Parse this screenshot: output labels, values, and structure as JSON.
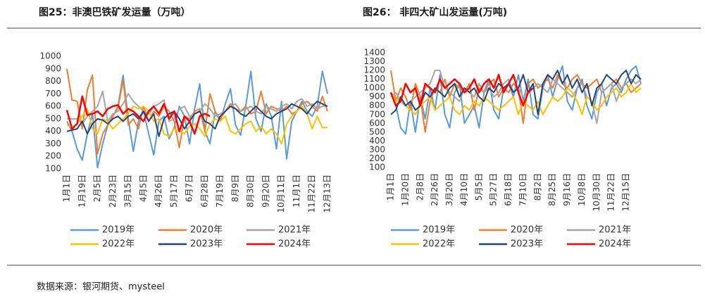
{
  "chart_data": [
    {
      "type": "line",
      "title": "图25：非澳巴铁矿发运量（万吨）",
      "categories": [
        "1月1日",
        null,
        null,
        "1月19日",
        null,
        null,
        "2月5日",
        null,
        null,
        "2月23日",
        null,
        null,
        "3月15日",
        null,
        null,
        "4月5日",
        null,
        null,
        "4月26日",
        null,
        null,
        "5月17日",
        null,
        null,
        "6月7日",
        null,
        null,
        "6月28日",
        null,
        null,
        "7月19日",
        null,
        null,
        "8月9日",
        null,
        null,
        "8月30日",
        null,
        null,
        "9月20日",
        null,
        null,
        "10月11日",
        null,
        null,
        "11月1日",
        null,
        null,
        "11月22日",
        null,
        null,
        "12月13日"
      ],
      "ylim": [
        100,
        1000
      ],
      "yticks": [
        100,
        200,
        300,
        400,
        500,
        600,
        700,
        800,
        900,
        1000
      ],
      "grid": false,
      "series": [
        {
          "name": "2019年",
          "color": "#5b9bd5",
          "values": [
            480,
            400,
            260,
            170,
            380,
            540,
            110,
            300,
            450,
            520,
            600,
            850,
            500,
            240,
            480,
            560,
            380,
            210,
            480,
            520,
            340,
            430,
            600,
            520,
            300,
            580,
            780,
            400,
            300,
            560,
            480,
            620,
            740,
            450,
            370,
            600,
            880,
            500,
            400,
            620,
            520,
            260,
            640,
            180,
            480,
            560,
            640,
            560,
            520,
            600,
            880,
            700
          ]
        },
        {
          "name": "2020年",
          "color": "#ed7d31",
          "values": [
            900,
            650,
            640,
            420,
            730,
            850,
            220,
            380,
            450,
            520,
            590,
            810,
            450,
            500,
            420,
            600,
            480,
            560,
            520,
            600,
            560,
            480,
            270,
            520,
            500,
            560,
            580,
            400,
            700,
            560,
            500,
            560,
            620,
            580,
            560,
            600,
            540,
            560,
            720,
            540,
            600,
            580,
            560,
            600,
            540,
            560,
            620,
            640,
            600,
            560,
            680,
            560
          ]
        },
        {
          "name": "2021年",
          "color": "#a5a5a5",
          "values": [
            500,
            500,
            500,
            460,
            520,
            560,
            600,
            720,
            480,
            540,
            560,
            620,
            700,
            640,
            600,
            560,
            540,
            600,
            620,
            650,
            480,
            500,
            580,
            600,
            520,
            540,
            560,
            620,
            580,
            520,
            540,
            560,
            600,
            620,
            560,
            580,
            600,
            560,
            540,
            600,
            580,
            560,
            600,
            620,
            580,
            640,
            660,
            600,
            620,
            580,
            600,
            600
          ]
        },
        {
          "name": "2022年",
          "color": "#ffc000",
          "values": [
            450,
            430,
            460,
            520,
            580,
            420,
            380,
            500,
            480,
            420,
            460,
            500,
            540,
            600,
            580,
            600,
            560,
            480,
            500,
            380,
            360,
            420,
            400,
            380,
            440,
            460,
            420,
            360,
            460,
            500,
            480,
            520,
            400,
            380,
            420,
            460,
            480,
            400,
            440,
            380,
            420,
            380,
            300,
            460,
            520,
            560,
            600,
            540,
            420,
            520,
            430,
            430
          ]
        },
        {
          "name": "2023年",
          "color": "#264478",
          "values": [
            400,
            410,
            420,
            480,
            380,
            460,
            500,
            490,
            460,
            500,
            520,
            480,
            520,
            540,
            500,
            560,
            480,
            540,
            360,
            500,
            540,
            560,
            500,
            420,
            480,
            540,
            560,
            480,
            460,
            420,
            520,
            560,
            600,
            580,
            540,
            520,
            560,
            600,
            560,
            520,
            500,
            540,
            560,
            580,
            620,
            600,
            580,
            540,
            600,
            640,
            620,
            600
          ]
        },
        {
          "name": "2024年",
          "color": "#ff0000",
          "values": [
            570,
            420,
            460,
            680,
            530,
            540,
            560,
            520,
            580,
            600,
            610,
            540,
            580,
            560,
            520,
            480,
            560,
            600,
            540,
            620,
            500,
            560,
            400,
            520,
            480,
            380,
            520,
            540,
            520,
            null,
            null,
            null,
            null,
            null,
            null,
            null,
            null,
            null,
            null,
            null,
            null,
            null,
            null,
            null,
            null,
            null,
            null,
            null,
            null,
            null,
            null,
            null
          ]
        }
      ]
    },
    {
      "type": "line",
      "title": "图26：  非四大矿山发运量(万吨)",
      "categories": [
        "1月1日",
        null,
        null,
        "1月20日",
        null,
        null,
        "2月8日",
        null,
        null,
        "2月26日",
        null,
        null,
        "3月20日",
        null,
        null,
        "4月10日",
        null,
        null,
        "5月5日",
        null,
        null,
        "5月27日",
        null,
        null,
        "6月18日",
        null,
        null,
        "7月10日",
        null,
        null,
        "8月2日",
        null,
        null,
        "8月25日",
        null,
        null,
        "9月16日",
        null,
        null,
        "10月8日",
        null,
        null,
        "10月30日",
        null,
        null,
        "11月22日",
        null,
        null,
        "12月15日",
        null,
        null,
        null
      ],
      "ylim": [
        100,
        1400
      ],
      "yticks": [
        100,
        200,
        300,
        400,
        500,
        600,
        700,
        800,
        900,
        1000,
        1100,
        1200,
        1300,
        1400
      ],
      "grid": false,
      "series": [
        {
          "name": "2019年",
          "color": "#5b9bd5",
          "values": [
            950,
            800,
            550,
            480,
            850,
            500,
            900,
            650,
            1000,
            750,
            1150,
            700,
            550,
            950,
            1050,
            600,
            700,
            800,
            550,
            950,
            1100,
            750,
            650,
            1000,
            1050,
            900,
            1150,
            850,
            1100,
            700,
            650,
            1000,
            1150,
            900,
            1100,
            1250,
            850,
            750,
            1000,
            1100,
            800,
            650,
            950,
            1050,
            800,
            1000,
            1050,
            950,
            1100,
            1200,
            1250,
            1050
          ]
        },
        {
          "name": "2020年",
          "color": "#ed7d31",
          "values": [
            1200,
            850,
            1000,
            900,
            750,
            1050,
            900,
            500,
            850,
            1000,
            950,
            1100,
            900,
            1050,
            1000,
            950,
            1050,
            750,
            1000,
            950,
            1050,
            1100,
            900,
            1000,
            950,
            1050,
            1000,
            600,
            1050,
            1100,
            1000,
            1050,
            1100,
            1000,
            1150,
            1050,
            1000,
            1100,
            1150,
            1050,
            1000,
            1050,
            1100,
            950,
            1000,
            1050,
            1100,
            1000,
            1050,
            950,
            1000,
            1050
          ]
        },
        {
          "name": "2021年",
          "color": "#a5a5a5",
          "values": [
            900,
            950,
            850,
            800,
            850,
            900,
            950,
            1000,
            1050,
            1200,
            1200,
            1000,
            950,
            900,
            850,
            1000,
            950,
            900,
            1050,
            950,
            1000,
            900,
            950,
            1050,
            1100,
            950,
            1000,
            900,
            950,
            1000,
            1050,
            1000,
            950,
            1100,
            1050,
            1000,
            950,
            900,
            1000,
            1050,
            900,
            850,
            600,
            950,
            1000,
            1050,
            850,
            1000,
            1050,
            1100,
            1050,
            1100
          ]
        },
        {
          "name": "2022年",
          "color": "#ffc000",
          "values": [
            950,
            850,
            900,
            800,
            750,
            700,
            800,
            850,
            900,
            750,
            800,
            850,
            900,
            750,
            700,
            800,
            750,
            850,
            800,
            900,
            850,
            800,
            750,
            800,
            850,
            900,
            700,
            850,
            800,
            750,
            850,
            700,
            800,
            900,
            850,
            900,
            1000,
            950,
            850,
            700,
            900,
            850,
            750,
            800,
            900,
            950,
            1000,
            900,
            950,
            1050,
            950,
            1000
          ]
        },
        {
          "name": "2023年",
          "color": "#264478",
          "values": [
            700,
            750,
            900,
            800,
            850,
            750,
            800,
            950,
            900,
            1000,
            950,
            900,
            1000,
            1050,
            900,
            1000,
            950,
            1000,
            900,
            850,
            1000,
            950,
            1050,
            1000,
            1050,
            950,
            1000,
            1150,
            950,
            1050,
            700,
            1050,
            1150,
            1100,
            1200,
            1050,
            1150,
            1000,
            1100,
            950,
            1050,
            800,
            1000,
            1050,
            1150,
            1100,
            1050,
            1150,
            1200,
            1050,
            1150,
            1100
          ]
        },
        {
          "name": "2024年",
          "color": "#ff0000",
          "values": [
            950,
            800,
            850,
            1050,
            950,
            1000,
            800,
            1050,
            1000,
            950,
            1100,
            1000,
            1050,
            1100,
            1050,
            950,
            1000,
            1100,
            950,
            1050,
            1100,
            1000,
            1150,
            950,
            1050,
            1150,
            950,
            800,
            950,
            1000,
            null,
            null,
            null,
            null,
            null,
            null,
            null,
            null,
            null,
            null,
            null,
            null,
            null,
            null,
            null,
            null,
            null,
            null,
            null,
            null,
            null,
            null
          ]
        }
      ]
    }
  ],
  "source": "数据来源：银河期货、mysteel"
}
